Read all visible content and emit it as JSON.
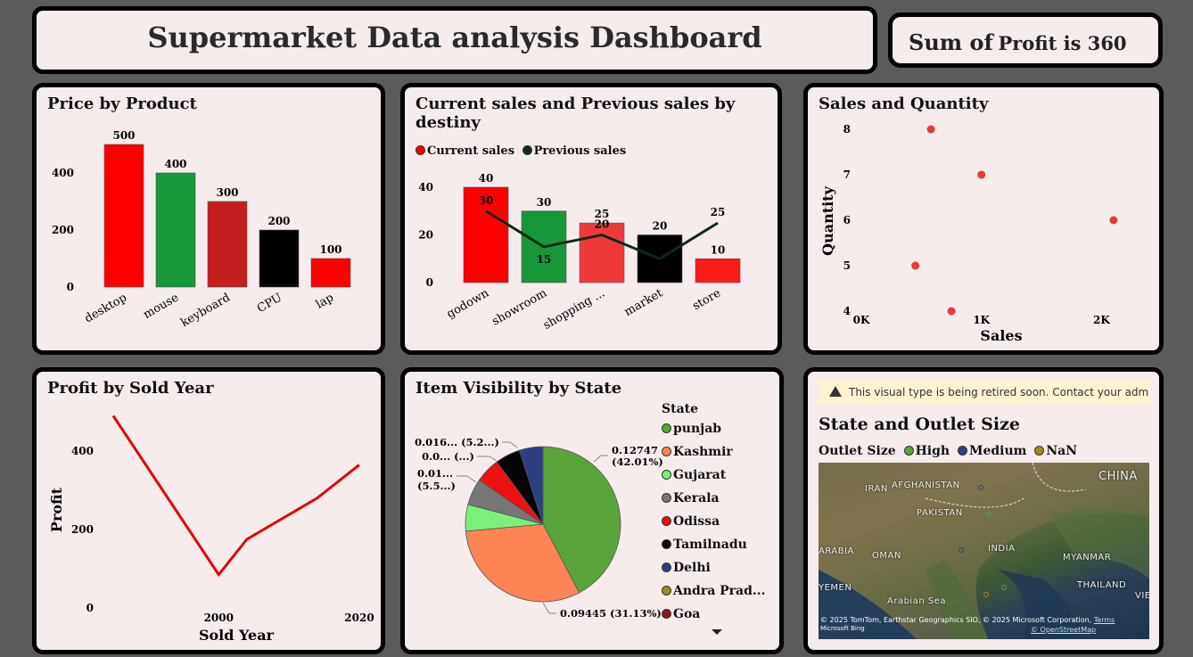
{
  "header": {
    "title": "Supermarket Data analysis Dashboard",
    "kpi_prefix": "Sum of",
    "kpi_text": "Profit is 360"
  },
  "price_by_product": {
    "title": "Price by Product",
    "chart_data": {
      "type": "bar",
      "categories": [
        "desktop",
        "mouse",
        "keyboard",
        "CPU",
        "lap"
      ],
      "values": [
        500,
        400,
        300,
        200,
        100
      ],
      "colors": [
        "#ff0000",
        "#16983a",
        "#c41e1e",
        "#000000",
        "#ff0000"
      ],
      "y_ticks": [
        "0",
        "200",
        "400"
      ],
      "ylim": [
        0,
        500
      ]
    }
  },
  "sales_by_destiny": {
    "title": "Current sales and Previous sales by destiny",
    "legend": [
      "Current sales",
      "Previous sales"
    ],
    "chart_data": {
      "type": "bar",
      "categories": [
        "godown",
        "showroom",
        "shopping ...",
        "market",
        "store"
      ],
      "series": [
        {
          "name": "Current sales",
          "values": [
            40,
            30,
            25,
            20,
            10
          ],
          "colors": [
            "#ff0000",
            "#16983a",
            "#f03a3a",
            "#000000",
            "#ff1a1a"
          ]
        },
        {
          "name": "Previous sales",
          "values": [
            30,
            15,
            20,
            10,
            25
          ],
          "color": "#0f2a17"
        }
      ],
      "y_ticks": [
        "0",
        "20",
        "40"
      ],
      "ylim": [
        0,
        40
      ]
    }
  },
  "sales_quantity": {
    "title": "Sales and Quantity",
    "xlabel": "Sales",
    "ylabel": "Quantity",
    "chart_data": {
      "type": "scatter",
      "x_ticks": [
        "0K",
        "1K",
        "2K"
      ],
      "y_ticks": [
        "4",
        "5",
        "6",
        "7",
        "8"
      ],
      "xlim": [
        -0.1,
        2.1
      ],
      "ylim": [
        4,
        8
      ],
      "points": [
        {
          "x": 0.58,
          "y": 8
        },
        {
          "x": 1.0,
          "y": 7
        },
        {
          "x": 2.1,
          "y": 6
        },
        {
          "x": 0.45,
          "y": 5
        },
        {
          "x": 0.75,
          "y": 4
        }
      ],
      "color": "#e83a3a"
    }
  },
  "profit_by_year": {
    "title": "Profit by Sold Year",
    "xlabel": "Sold Year",
    "ylabel": "Profit",
    "chart_data": {
      "type": "line",
      "x": [
        1985,
        2000,
        2004,
        2014,
        2020
      ],
      "values": [
        490,
        85,
        175,
        280,
        365
      ],
      "x_ticks": [
        "2000",
        "2020"
      ],
      "y_ticks": [
        "0",
        "200",
        "400"
      ],
      "xlim": [
        1985,
        2020
      ],
      "ylim": [
        0,
        500
      ],
      "color": "#e60000"
    }
  },
  "item_visibility": {
    "title": "Item Visibility by State",
    "legend_title": "State",
    "labels": {
      "punjab_value": "0.12747",
      "punjab_pct": "(42.01%)",
      "kashmir": "0.09445 (31.13%)",
      "small1": "0.016... (5.2...)",
      "small2": "0.0... (...)",
      "small3a": "0.01...",
      "small3b": "(5.5...)"
    },
    "chart_data": {
      "type": "pie",
      "slices": [
        {
          "name": "punjab",
          "value": 42.01,
          "color": "#5aa43c"
        },
        {
          "name": "Kashmir",
          "value": 31.13,
          "color": "#ff8455"
        },
        {
          "name": "Gujarat",
          "value": 5.5,
          "color": "#7af07a"
        },
        {
          "name": "Kerala",
          "value": 5.5,
          "color": "#777777"
        },
        {
          "name": "Odissa",
          "value": 5.2,
          "color": "#ee1111"
        },
        {
          "name": "Tamilnadu",
          "value": 5.2,
          "color": "#050505"
        },
        {
          "name": "Delhi",
          "value": 4.9,
          "color": "#2d3f80"
        }
      ],
      "extra_legend": [
        {
          "name": "Andra Prad...",
          "color": "#a38a1e"
        },
        {
          "name": "Goa",
          "color": "#8b1a1a"
        }
      ]
    }
  },
  "state_outlet": {
    "warning": "This visual type is being retired soon. Contact your admin...",
    "title": "State and Outlet Size",
    "legend_title": "Outlet Size",
    "legend": [
      {
        "name": "High",
        "color": "#5aa43c"
      },
      {
        "name": "Medium",
        "color": "#2d3f80"
      },
      {
        "name": "NaN",
        "color": "#a38a1e"
      }
    ],
    "map_labels": [
      "CHINA",
      "IRAN",
      "AFGHANISTAN",
      "PAKISTAN",
      "INDIA",
      "ARABIA",
      "OMAN",
      "MYANMAR",
      "YEMEN",
      "Arabian Sea",
      "THAILAND",
      "VIE"
    ],
    "attribution": "© 2025 TomTom, Earthstar Geographics SIO, © 2025 Microsoft Corporation,",
    "terms": "Terms",
    "osm": "© OpenStreetMap",
    "bing": "Microsoft Bing"
  }
}
